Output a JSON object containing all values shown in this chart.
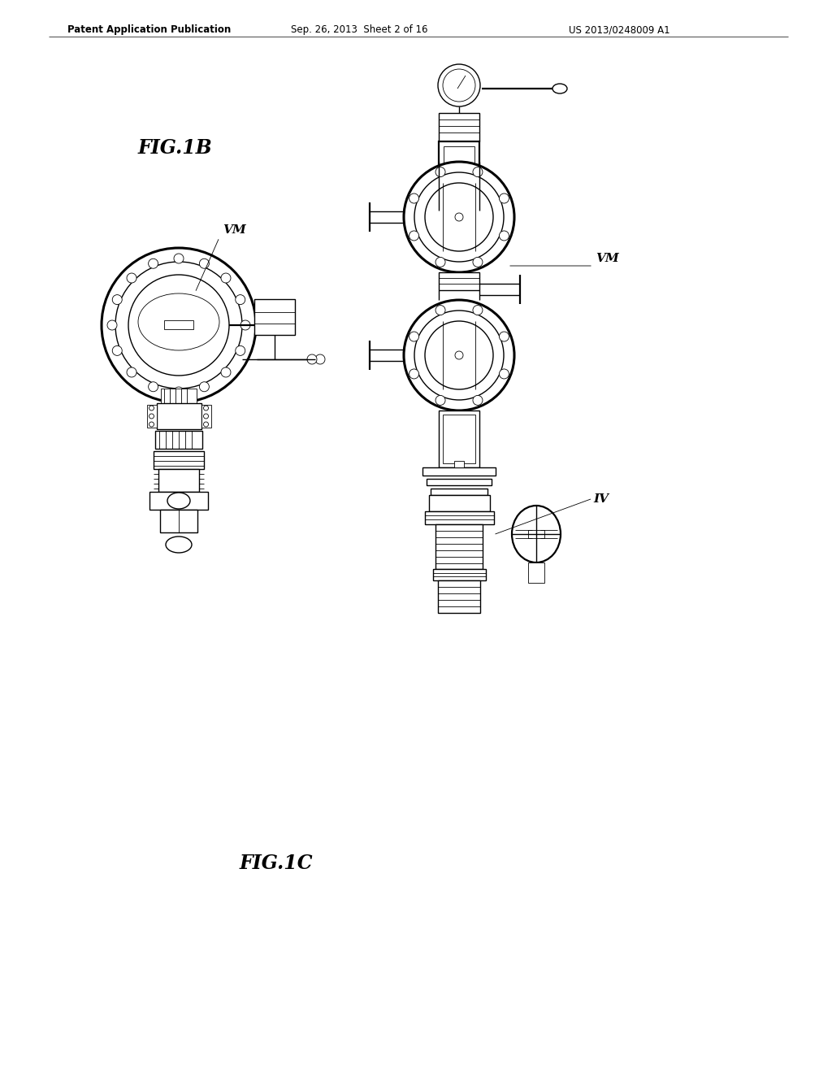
{
  "bg_color": "#ffffff",
  "line_color": "#000000",
  "header_text": "Patent Application Publication",
  "header_date": "Sep. 26, 2013  Sheet 2 of 16",
  "header_patent": "US 2013/0248009 A1",
  "fig1b_label": "FIG.1B",
  "fig1c_label": "FIG.1C",
  "label_vm1": "VM",
  "label_vm2": "VM",
  "label_iv": "IV"
}
